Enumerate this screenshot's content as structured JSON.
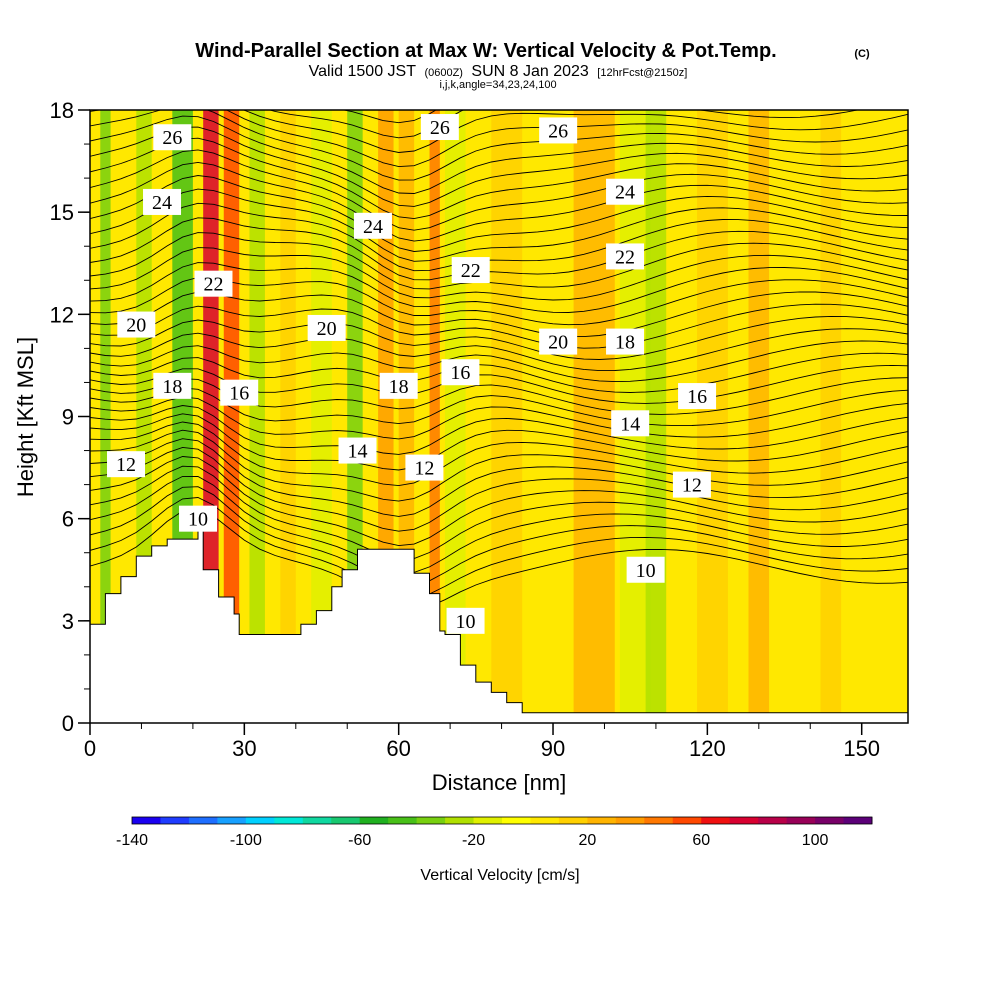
{
  "title": {
    "main": "Wind-Parallel Section at Max W: Vertical Velocity & Pot.Temp.",
    "tag": "(C)",
    "subtitle_main_a": "Valid 1500 JST",
    "subtitle_small_a": "(0600Z)",
    "subtitle_main_b": "SUN 8 Jan 2023",
    "subtitle_small_b": "[12hrFcst@2150z]",
    "subtitle_line2": "i,j,k,angle=34,23,24,100"
  },
  "chart_data": {
    "type": "heatmap",
    "title": "Wind-Parallel Section at Max W: Vertical Velocity & Pot.Temp.",
    "xlabel": "Distance [nm]",
    "ylabel": "Height [Kft MSL]",
    "xlim": [
      0,
      159
    ],
    "ylim": [
      0,
      18
    ],
    "x_ticks": [
      0,
      30,
      60,
      90,
      120,
      150
    ],
    "y_ticks": [
      0,
      3,
      6,
      9,
      12,
      15,
      18
    ],
    "grid": false,
    "colorbar": {
      "label": "Vertical Velocity [cm/s]",
      "min": -140,
      "max": 120,
      "step": 10,
      "ticks": [
        -140,
        -100,
        -60,
        -20,
        20,
        60,
        100
      ],
      "colors": [
        "#1a00f0",
        "#1f3cff",
        "#1e6eff",
        "#17a0ff",
        "#00d0ff",
        "#00e8d8",
        "#10d8a0",
        "#18c870",
        "#20b020",
        "#48c018",
        "#78d010",
        "#b0e000",
        "#e0f000",
        "#ffff00",
        "#ffe800",
        "#ffd000",
        "#ffb400",
        "#ff9c00",
        "#ff7800",
        "#ff4800",
        "#f01010",
        "#d80030",
        "#b80048",
        "#980058",
        "#780068",
        "#5c0078"
      ]
    },
    "terrain_kft": [
      [
        0,
        2.9
      ],
      [
        3,
        2.9
      ],
      [
        3,
        3.8
      ],
      [
        6,
        3.8
      ],
      [
        6,
        4.3
      ],
      [
        9,
        4.3
      ],
      [
        9,
        4.9
      ],
      [
        12,
        4.9
      ],
      [
        12,
        5.2
      ],
      [
        15,
        5.2
      ],
      [
        15,
        5.4
      ],
      [
        21,
        5.4
      ],
      [
        21,
        5.7
      ],
      [
        22,
        5.7
      ],
      [
        22,
        4.5
      ],
      [
        25,
        4.5
      ],
      [
        25,
        3.7
      ],
      [
        28,
        3.7
      ],
      [
        28,
        3.2
      ],
      [
        29,
        3.2
      ],
      [
        29,
        2.6
      ],
      [
        41,
        2.6
      ],
      [
        41,
        2.9
      ],
      [
        44,
        2.9
      ],
      [
        44,
        3.3
      ],
      [
        47,
        3.3
      ],
      [
        47,
        4.0
      ],
      [
        49,
        4.0
      ],
      [
        49,
        4.5
      ],
      [
        52,
        4.5
      ],
      [
        52,
        5.1
      ],
      [
        63,
        5.1
      ],
      [
        63,
        4.4
      ],
      [
        66,
        4.4
      ],
      [
        66,
        3.8
      ],
      [
        68,
        3.8
      ],
      [
        68,
        2.7
      ],
      [
        69,
        2.7
      ],
      [
        69,
        2.6
      ],
      [
        72,
        2.6
      ],
      [
        72,
        1.7
      ],
      [
        75,
        1.7
      ],
      [
        75,
        1.2
      ],
      [
        78,
        1.2
      ],
      [
        78,
        0.9
      ],
      [
        81,
        0.9
      ],
      [
        81,
        0.6
      ],
      [
        84,
        0.6
      ],
      [
        84,
        0.3
      ],
      [
        159,
        0.3
      ]
    ],
    "velocity_bands": [
      {
        "x": 2,
        "w": 2,
        "value": -40
      },
      {
        "x": 9,
        "w": 3,
        "value": -30
      },
      {
        "x": 16,
        "w": 4,
        "value": -50
      },
      {
        "x": 22,
        "w": 3,
        "value": 70
      },
      {
        "x": 26,
        "w": 3,
        "value": 50
      },
      {
        "x": 31,
        "w": 3,
        "value": -30
      },
      {
        "x": 37,
        "w": 3,
        "value": 10
      },
      {
        "x": 43,
        "w": 4,
        "value": -20
      },
      {
        "x": 50,
        "w": 3,
        "value": -40
      },
      {
        "x": 56,
        "w": 3,
        "value": 30
      },
      {
        "x": 60,
        "w": 3,
        "value": 20
      },
      {
        "x": 66,
        "w": 2,
        "value": 40
      },
      {
        "x": 69,
        "w": 4,
        "value": -20
      },
      {
        "x": 78,
        "w": 6,
        "value": 10
      },
      {
        "x": 94,
        "w": 8,
        "value": 20
      },
      {
        "x": 103,
        "w": 6,
        "value": -20
      },
      {
        "x": 108,
        "w": 4,
        "value": -30
      },
      {
        "x": 118,
        "w": 6,
        "value": 10
      },
      {
        "x": 128,
        "w": 4,
        "value": 20
      },
      {
        "x": 142,
        "w": 4,
        "value": 10
      }
    ],
    "isentrope_labels": [
      {
        "text": "26",
        "x": 16,
        "y": 17.2
      },
      {
        "text": "26",
        "x": 68,
        "y": 17.5
      },
      {
        "text": "26",
        "x": 91,
        "y": 17.4
      },
      {
        "text": "24",
        "x": 14,
        "y": 15.3
      },
      {
        "text": "24",
        "x": 55,
        "y": 14.6
      },
      {
        "text": "24",
        "x": 104,
        "y": 15.6
      },
      {
        "text": "22",
        "x": 24,
        "y": 12.9
      },
      {
        "text": "22",
        "x": 74,
        "y": 13.3
      },
      {
        "text": "22",
        "x": 104,
        "y": 13.7
      },
      {
        "text": "20",
        "x": 9,
        "y": 11.7
      },
      {
        "text": "20",
        "x": 46,
        "y": 11.6
      },
      {
        "text": "20",
        "x": 91,
        "y": 11.2
      },
      {
        "text": "18",
        "x": 16,
        "y": 9.9
      },
      {
        "text": "18",
        "x": 60,
        "y": 9.9
      },
      {
        "text": "18",
        "x": 104,
        "y": 11.2
      },
      {
        "text": "16",
        "x": 29,
        "y": 9.7
      },
      {
        "text": "16",
        "x": 72,
        "y": 10.3
      },
      {
        "text": "16",
        "x": 118,
        "y": 9.6
      },
      {
        "text": "14",
        "x": 52,
        "y": 8.0
      },
      {
        "text": "14",
        "x": 105,
        "y": 8.8
      },
      {
        "text": "12",
        "x": 7,
        "y": 7.6
      },
      {
        "text": "12",
        "x": 65,
        "y": 7.5
      },
      {
        "text": "12",
        "x": 117,
        "y": 7.0
      },
      {
        "text": "10",
        "x": 21,
        "y": 6.0
      },
      {
        "text": "10",
        "x": 73,
        "y": 3.0
      },
      {
        "text": "10",
        "x": 108,
        "y": 4.5
      }
    ]
  }
}
